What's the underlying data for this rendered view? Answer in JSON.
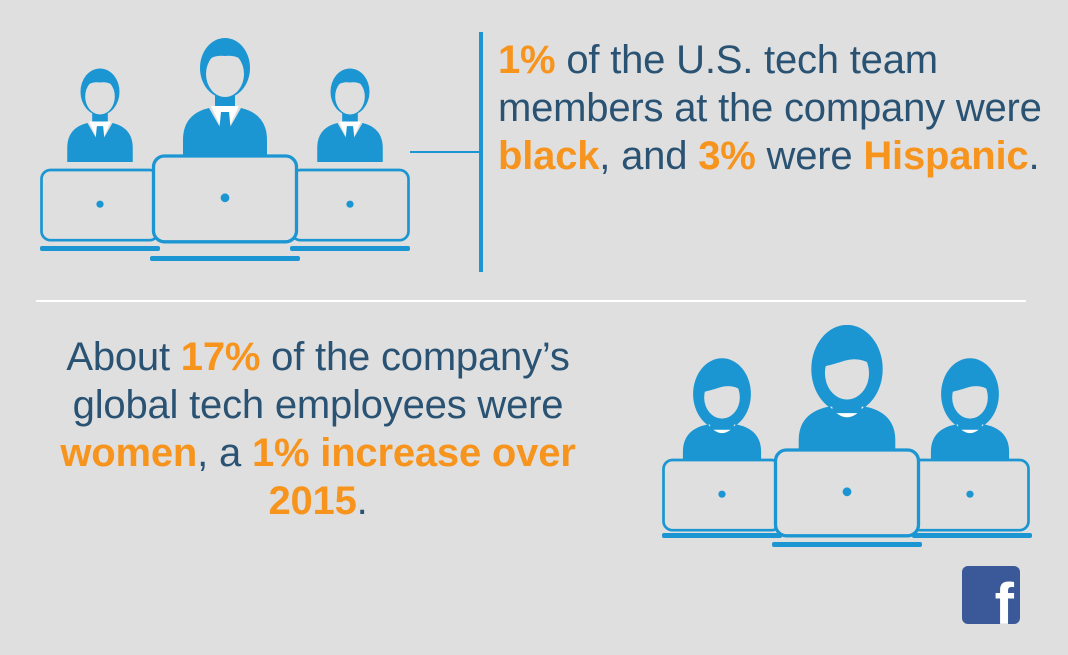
{
  "colors": {
    "background": "#dfdfdf",
    "figure_blue": "#1b96d2",
    "text_blue": "#2a5273",
    "highlight_orange": "#f7941d",
    "facebook_blue": "#3b5998"
  },
  "top_stat": {
    "pct_black": "1%",
    "text_1": " of the U.S. tech team members at the company were ",
    "word_black": "black",
    "text_2": ", and ",
    "pct_hispanic": "3%",
    "text_3": " were ",
    "word_hispanic": "Hispanic",
    "text_4": "."
  },
  "bottom_stat": {
    "text_1": "About ",
    "pct_women": "17%",
    "text_2": " of the company’s global tech employees were ",
    "word_women": "women",
    "text_3": ", a ",
    "increase": "1% increase over 2015",
    "text_4": "."
  },
  "icons": {
    "men_group": "men-at-laptops-icon",
    "women_group": "women-at-laptops-icon",
    "facebook": "facebook-logo-icon"
  },
  "facebook_glyph": "f"
}
